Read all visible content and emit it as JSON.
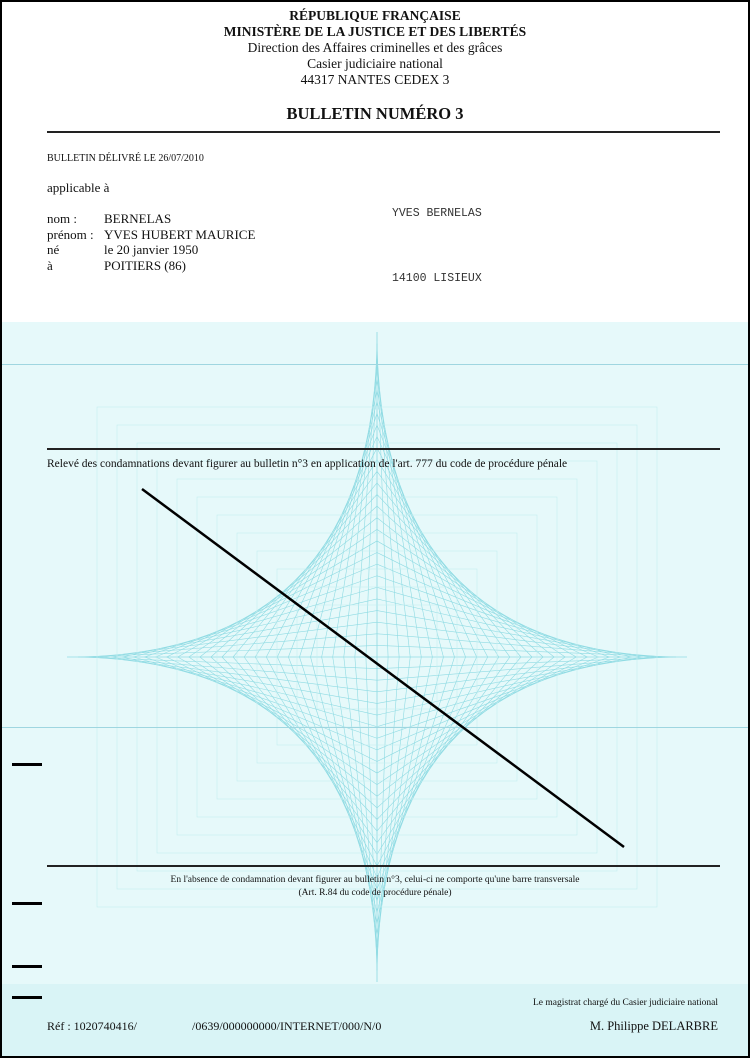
{
  "header": {
    "line1": "RÉPUBLIQUE FRANÇAISE",
    "line2": "MINISTÈRE DE LA JUSTICE ET DES LIBERTÉS",
    "line3": "Direction des Affaires criminelles et des grâces",
    "line4": "Casier judiciaire national",
    "line5": "44317 NANTES CEDEX 3",
    "title": "BULLETIN NUMÉRO 3"
  },
  "issued": "BULLETIN DÉLIVRÉ LE 26/07/2010",
  "applicable": "applicable à",
  "identity": [
    {
      "label": "nom :",
      "value": "BERNELAS"
    },
    {
      "label": "prénom :",
      "value": "YVES HUBERT MAURICE"
    },
    {
      "label": "né",
      "value": "le 20 janvier 1950"
    },
    {
      "label": "à",
      "value": "POITIERS (86)"
    }
  ],
  "address": {
    "name": "YVES BERNELAS",
    "city": "14100 LISIEUX"
  },
  "section_title": "Relevé des condamnations devant figurer au bulletin n°3 en application de  l'art. 777 du code de procédure pénale",
  "notice": {
    "line1": "En l'absence de condamnation devant figurer au bulletin n°3, celui-ci ne comporte qu'une barre transversale",
    "line2": "(Art. R.84 du code de procédure pénale)"
  },
  "footer": {
    "ref_label": "Réf : 1020740416/",
    "ref_code": "/0639/000000000/INTERNET/000/N/0",
    "signer_title": "Le magistrat chargé du Casier judiciaire national",
    "signer_name": "M. Philippe DELARBRE"
  },
  "colors": {
    "background_pattern": "#e6f9fa",
    "pattern_lines": "#8fdbe3"
  }
}
